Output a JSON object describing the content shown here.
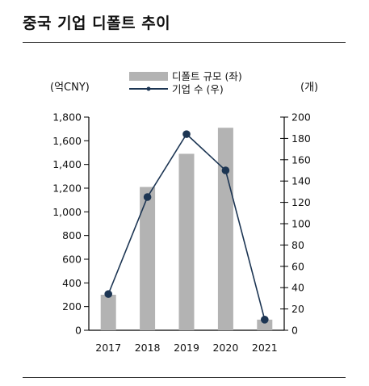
{
  "title": "중국 기업 디폴트 추이",
  "chart_data": {
    "type": "bar",
    "categories": [
      "2017",
      "2018",
      "2019",
      "2020",
      "2021"
    ],
    "left_axis_unit": "(억CNY)",
    "right_axis_unit": "(개)",
    "left_ylim": [
      0,
      1800
    ],
    "left_ticks": [
      "0",
      "200",
      "400",
      "600",
      "800",
      "1,000",
      "1,200",
      "1,400",
      "1,600",
      "1,800"
    ],
    "right_ylim": [
      0,
      200
    ],
    "right_ticks": [
      "0",
      "20",
      "40",
      "60",
      "80",
      "100",
      "120",
      "140",
      "160",
      "180",
      "200"
    ],
    "series": [
      {
        "name": "디폴트 규모 (좌)",
        "type": "bar",
        "axis": "left",
        "color": "#b3b3b3",
        "values": [
          300,
          1210,
          1490,
          1710,
          90
        ]
      },
      {
        "name": "기업 수 (우)",
        "type": "line",
        "axis": "right",
        "color": "#1c3553",
        "values": [
          34,
          125,
          184,
          150,
          10
        ]
      }
    ],
    "legend_position": "top-center",
    "grid": false
  }
}
